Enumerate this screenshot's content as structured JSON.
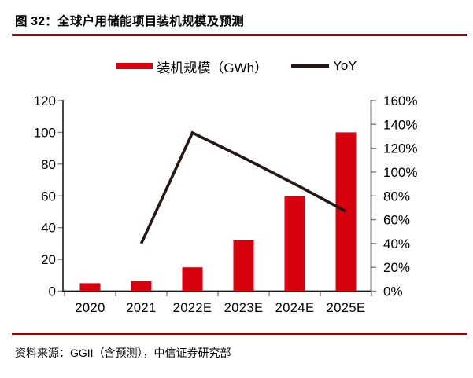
{
  "figure": {
    "title": "图 32：全球户用储能项目装机规模及预测",
    "source": "资料来源：GGII（含预测），中信证券研究部"
  },
  "legend": {
    "bar_label": "装机规模（GWh）",
    "line_label": "YoY"
  },
  "colors": {
    "bar": "#d7000f",
    "line": "#231815",
    "rule": "#a00000",
    "axis": "#1a1a1a",
    "tick": "#7f7f7f",
    "text": "#000000"
  },
  "chart_data": {
    "type": "combo (bar + line)",
    "title": "图 32：全球户用储能项目装机规模及预测",
    "categories": [
      "2020",
      "2021",
      "2022E",
      "2023E",
      "2024E",
      "2025E"
    ],
    "series": [
      {
        "name": "装机规模（GWh）",
        "type": "bar",
        "axis": "left",
        "unit": "GWh",
        "values": [
          5,
          6.5,
          15,
          32,
          60,
          100
        ]
      },
      {
        "name": "YoY",
        "type": "line",
        "axis": "right",
        "unit": "%",
        "values": [
          null,
          40,
          133,
          112,
          90,
          67
        ]
      }
    ],
    "left_axis": {
      "min": 0,
      "max": 120,
      "step": 20,
      "tick_labels": [
        "0",
        "20",
        "40",
        "60",
        "80",
        "100",
        "120"
      ]
    },
    "right_axis": {
      "min": 0,
      "max": 160,
      "step": 20,
      "tick_labels": [
        "0%",
        "20%",
        "40%",
        "60%",
        "80%",
        "100%",
        "120%",
        "140%",
        "160%"
      ]
    },
    "grid": false,
    "legend_position": "top-center",
    "source_note": "资料来源：GGII（含预测），中信证券研究部"
  }
}
